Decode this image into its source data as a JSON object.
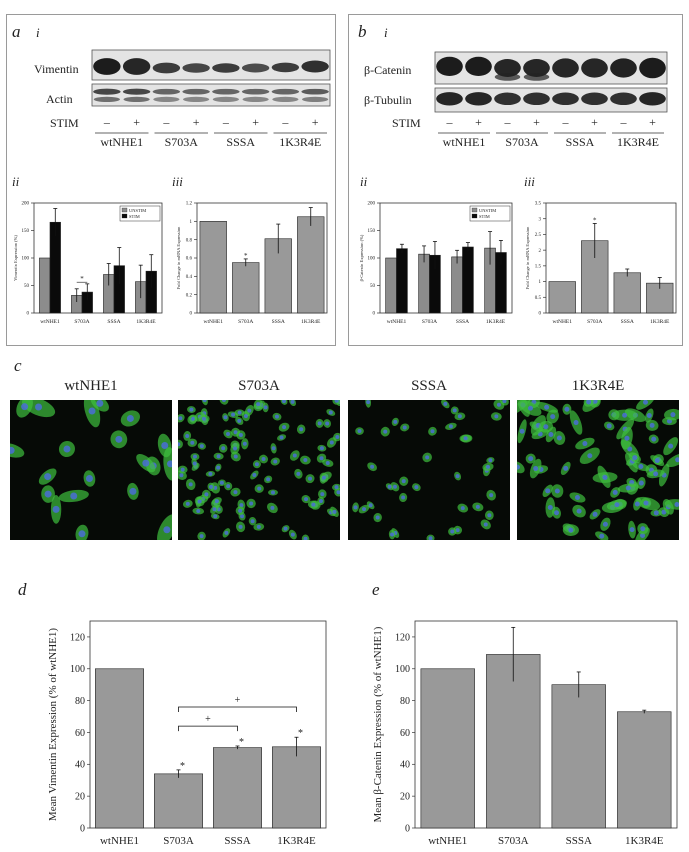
{
  "panel_letters": {
    "a": "a",
    "b": "b",
    "c": "c",
    "d": "d",
    "e": "e"
  },
  "roman": {
    "i": "i",
    "ii": "ii",
    "iii": "iii"
  },
  "genotypes": [
    "wtNHE1",
    "S703A",
    "SSSA",
    "1K3R4E"
  ],
  "blot_a": {
    "row1": "Vimentin",
    "row2": "Actin",
    "stim_label": "STIM",
    "stim_signs": [
      "–",
      "+",
      "–",
      "+",
      "–",
      "+",
      "–",
      "+"
    ]
  },
  "blot_b": {
    "row1": "β-Catenin",
    "row2": "β-Tubulin",
    "stim_label": "STIM",
    "stim_signs": [
      "–",
      "+",
      "–",
      "+",
      "–",
      "+",
      "–",
      "+"
    ]
  },
  "legend": {
    "unstim": "UNSTIM",
    "stim": "STIM"
  },
  "colors": {
    "unstim": "#8c8c8c",
    "stim": "#0a0a0a",
    "bar": "#999999",
    "frame": "#9a9a9a",
    "micro_bg": "#060a06",
    "cell": "#3fbf3f",
    "nucleus": "#4a6fd6"
  },
  "chart_data": [
    {
      "id": "a-ii",
      "type": "bar",
      "categories": [
        "wtNHE1",
        "S703A",
        "SSSA",
        "1K3R4E"
      ],
      "series": [
        {
          "name": "UNSTIM",
          "values": [
            100,
            32,
            70,
            57
          ],
          "errors": [
            0,
            12,
            20,
            30
          ]
        },
        {
          "name": "STIM",
          "values": [
            165,
            38,
            86,
            76
          ],
          "errors": [
            25,
            15,
            33,
            30
          ]
        }
      ],
      "ylabel": "Vimentin Expression (%)",
      "ylim": [
        0,
        200
      ],
      "yticks": [
        0,
        50,
        100,
        150,
        200
      ],
      "annotations": [
        "*"
      ],
      "legend_placement": "top-right"
    },
    {
      "id": "a-iii",
      "type": "bar",
      "categories": [
        "wtNHE1",
        "S703A",
        "SSSA",
        "1K3R4E"
      ],
      "values": [
        1.0,
        0.55,
        0.81,
        1.05
      ],
      "errors": [
        0,
        0.04,
        0.16,
        0.1
      ],
      "ylabel": "Fold Change in mRNA Expression",
      "ylim": [
        0,
        1.2
      ],
      "yticks": [
        0,
        0.2,
        0.4,
        0.6,
        0.8,
        1,
        1.2
      ],
      "annotations": [
        "*"
      ]
    },
    {
      "id": "b-ii",
      "type": "bar",
      "categories": [
        "wtNHE1",
        "S703A",
        "SSSA",
        "1K3R4E"
      ],
      "series": [
        {
          "name": "UNSTIM",
          "values": [
            100,
            107,
            102,
            118
          ],
          "errors": [
            0,
            15,
            12,
            30
          ]
        },
        {
          "name": "STIM",
          "values": [
            117,
            105,
            120,
            110
          ],
          "errors": [
            8,
            25,
            8,
            22
          ]
        }
      ],
      "ylabel": "β-Catenin Expression (%)",
      "ylim": [
        0,
        200
      ],
      "yticks": [
        0,
        50,
        100,
        150,
        200
      ],
      "legend_placement": "top-right"
    },
    {
      "id": "b-iii",
      "type": "bar",
      "categories": [
        "wtNHE1",
        "S703A",
        "SSSA",
        "1K3R4E"
      ],
      "values": [
        1.0,
        2.3,
        1.28,
        0.95
      ],
      "errors": [
        0,
        0.55,
        0.12,
        0.18
      ],
      "ylabel": "Fold Change in mRNA Expression",
      "ylim": [
        0,
        3.5
      ],
      "yticks": [
        0,
        0.5,
        1,
        1.5,
        2,
        2.5,
        3,
        3.5
      ],
      "annotations": [
        "*"
      ]
    },
    {
      "id": "d",
      "type": "bar",
      "categories": [
        "wtNHE1",
        "S703A",
        "SSSA",
        "1K3R4E"
      ],
      "values": [
        100,
        34,
        50.5,
        51
      ],
      "errors": [
        0,
        2.5,
        1,
        6
      ],
      "ylabel": "Mean Vimentin Expression (% of wtNHE1)",
      "ylim": [
        0,
        130
      ],
      "yticks": [
        0,
        20,
        40,
        60,
        80,
        100,
        120
      ],
      "annotations": [
        "*",
        "+"
      ]
    },
    {
      "id": "e",
      "type": "bar",
      "categories": [
        "wtNHE1",
        "S703A",
        "SSSA",
        "1K3R4E"
      ],
      "values": [
        100,
        109,
        90,
        73
      ],
      "errors": [
        0,
        17,
        8,
        1
      ],
      "ylabel": "Mean β-Catenin Expression (% of wtNHE1)",
      "ylim": [
        0,
        130
      ],
      "yticks": [
        0,
        20,
        40,
        60,
        80,
        100,
        120
      ]
    }
  ]
}
